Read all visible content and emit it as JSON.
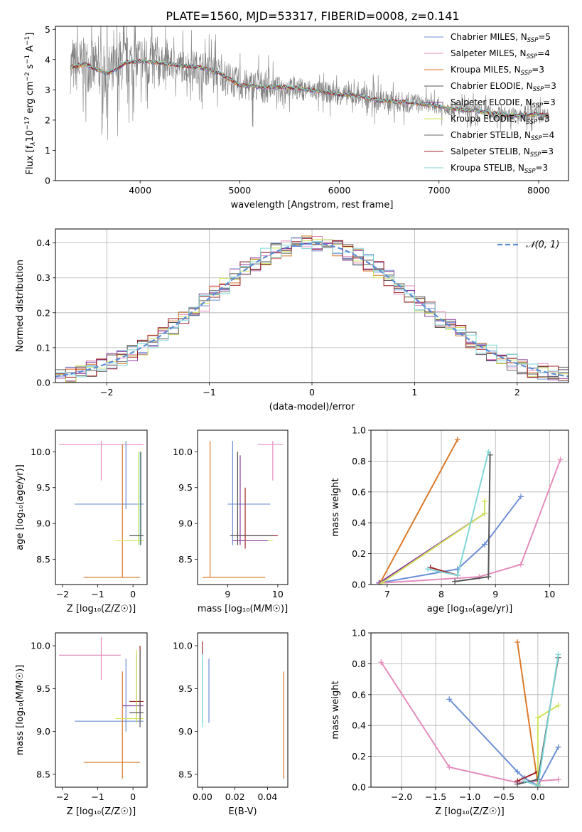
{
  "figure_title": "PLATE=1560, MJD=53317, FIBERID=0008, z=0.141",
  "colors": {
    "chab_miles": "#6b8fd6",
    "salp_miles": "#e48cbc",
    "krou_miles": "#d97a2b",
    "chab_elodie": "#555555",
    "salp_elodie": "#8b3a9e",
    "krou_elodie": "#cfe35a",
    "chab_stelib": "#666666",
    "salp_stelib": "#a0242a",
    "krou_stelib": "#7fd6d6",
    "data": "#808080",
    "gauss": "#5b8bd6"
  },
  "legend": [
    {
      "key": "chab_miles",
      "label": "Chabrier MILES, N",
      "sub": "SSP",
      "tail": "=5"
    },
    {
      "key": "salp_miles",
      "label": "Salpeter MILES, N",
      "sub": "SSP",
      "tail": "=4"
    },
    {
      "key": "krou_miles",
      "label": "Kroupa MILES, N",
      "sub": "SSP",
      "tail": "=3"
    },
    {
      "key": "chab_elodie",
      "label": "Chabrier ELODIE, N",
      "sub": "SSP",
      "tail": "=3"
    },
    {
      "key": "salp_elodie",
      "label": "Salpeter ELODIE, N",
      "sub": "SSP",
      "tail": "=3"
    },
    {
      "key": "krou_elodie",
      "label": "Kroupa ELODIE, N",
      "sub": "SSP",
      "tail": "=3"
    },
    {
      "key": "chab_stelib",
      "label": "Chabrier STELIB, N",
      "sub": "SSP",
      "tail": "=4"
    },
    {
      "key": "salp_stelib",
      "label": "Salpeter STELIB, N",
      "sub": "SSP",
      "tail": "=3"
    },
    {
      "key": "krou_stelib",
      "label": "Kroupa STELIB, N",
      "sub": "SSP",
      "tail": "=3"
    }
  ],
  "chart_data": [
    {
      "id": "spectrum",
      "type": "line",
      "xlabel": "wavelength [Angstrom, rest frame]",
      "ylabel_parts": [
        "Flux [f",
        "λ",
        "10",
        "−17",
        " erg cm",
        "−2",
        " s",
        "−1",
        " A",
        "−1",
        "]"
      ],
      "xlim": [
        3150,
        8300
      ],
      "ylim": [
        0,
        5.1
      ],
      "xticks": [
        4000,
        5000,
        6000,
        7000,
        8000
      ],
      "yticks": [
        0,
        1,
        2,
        3,
        4,
        5
      ],
      "xrange_data": [
        3300,
        8100
      ],
      "model_points": [
        [
          3300,
          3.75
        ],
        [
          3450,
          3.85
        ],
        [
          3550,
          3.7
        ],
        [
          3650,
          3.55
        ],
        [
          3750,
          3.65
        ],
        [
          3850,
          3.9
        ],
        [
          4000,
          3.95
        ],
        [
          4200,
          3.9
        ],
        [
          4400,
          3.8
        ],
        [
          4600,
          3.75
        ],
        [
          4800,
          3.55
        ],
        [
          5000,
          3.15
        ],
        [
          5200,
          3.1
        ],
        [
          5400,
          3.1
        ],
        [
          5600,
          3.05
        ],
        [
          5800,
          2.95
        ],
        [
          6000,
          2.85
        ],
        [
          6200,
          2.8
        ],
        [
          6400,
          2.65
        ],
        [
          6600,
          2.6
        ],
        [
          6800,
          2.55
        ],
        [
          7000,
          2.45
        ],
        [
          7200,
          2.35
        ],
        [
          7400,
          2.3
        ],
        [
          7600,
          2.2
        ],
        [
          7800,
          2.15
        ],
        [
          8000,
          2.2
        ],
        [
          8100,
          2.15
        ]
      ],
      "grid": false
    },
    {
      "id": "residuals",
      "type": "step",
      "xlabel": "(data-model)/error",
      "ylabel": "Normed distribution",
      "xlim": [
        -2.5,
        2.5
      ],
      "ylim": [
        0,
        0.44
      ],
      "xticks": [
        -2,
        -1,
        0,
        1,
        2
      ],
      "xtick_labels": [
        "−2",
        "−1",
        "0",
        "1",
        "2"
      ],
      "yticks": [
        0,
        0.1,
        0.2,
        0.3,
        0.4
      ],
      "ytick_labels": [
        "0.0",
        "0.1",
        "0.2",
        "0.3",
        "0.4"
      ],
      "bins": [
        -2.5,
        2.5,
        50
      ],
      "gauss_label": "𝒩(0, 1)",
      "grid": true
    },
    {
      "id": "age_vs_z",
      "type": "errorbar",
      "xlabel": "Z [log₁₀(Z/Z☉)]",
      "ylabel": "age  [log₁₀(age/yr)]",
      "xlim": [
        -2.2,
        0.4
      ],
      "ylim": [
        8.15,
        10.3
      ],
      "xticks": [
        -2,
        -1,
        0
      ],
      "xtick_labels": [
        "−2",
        "−1",
        "0"
      ],
      "yticks": [
        8.5,
        9.0,
        9.5,
        10.0
      ],
      "ytick_labels": [
        "8.5",
        "9.0",
        "9.5",
        "10.0"
      ],
      "points": [
        {
          "key": "salp_miles",
          "x": -0.9,
          "xe": [
            -2.1,
            0.3
          ],
          "y": 10.1,
          "ye": [
            9.6,
            10.15
          ]
        },
        {
          "key": "chab_miles",
          "x": -0.2,
          "xe": [
            -1.65,
            0.3
          ],
          "y": 9.27,
          "ye": [
            9.2,
            10.15
          ]
        },
        {
          "key": "krou_miles",
          "x": -0.3,
          "xe": [
            -1.4,
            0.2
          ],
          "y": 8.25,
          "ye": [
            8.25,
            10.1
          ]
        },
        {
          "key": "krou_stelib",
          "x": 0.2,
          "xe": [
            -0.1,
            0.3
          ],
          "y": 8.83,
          "ye": [
            8.7,
            10.0
          ]
        },
        {
          "key": "krou_elodie",
          "x": 0.15,
          "xe": [
            -0.5,
            0.3
          ],
          "y": 8.76,
          "ye": [
            8.7,
            10.0
          ]
        },
        {
          "key": "chab_elodie",
          "x": 0.22,
          "xe": [
            -0.1,
            0.3
          ],
          "y": 8.83,
          "ye": [
            8.7,
            10.0
          ]
        }
      ],
      "grid": false
    },
    {
      "id": "age_vs_mass",
      "type": "errorbar",
      "xlabel": "mass [log₁₀(M/M☉)]",
      "ylabel": "",
      "xlim": [
        8.4,
        10.2
      ],
      "ylim": [
        8.15,
        10.3
      ],
      "xticks": [
        9,
        10
      ],
      "xtick_labels": [
        "9",
        "10"
      ],
      "yticks": [
        8.5,
        9.0,
        9.5,
        10.0
      ],
      "ytick_labels": [
        "8.5",
        "9.0",
        "9.5",
        "10.0"
      ],
      "points": [
        {
          "key": "salp_miles",
          "x": 9.9,
          "xe": [
            9.6,
            10.1
          ],
          "y": 10.1,
          "ye": [
            9.6,
            10.15
          ]
        },
        {
          "key": "chab_miles",
          "x": 9.1,
          "xe": [
            9.0,
            9.85
          ],
          "y": 9.27,
          "ye": [
            8.7,
            10.15
          ]
        },
        {
          "key": "krou_miles",
          "x": 8.65,
          "xe": [
            8.5,
            9.75
          ],
          "y": 8.25,
          "ye": [
            8.25,
            10.15
          ]
        },
        {
          "key": "salp_stelib",
          "x": 9.35,
          "xe": [
            9.15,
            10.0
          ],
          "y": 8.83,
          "ye": [
            8.65,
            9.5
          ]
        },
        {
          "key": "krou_elodie",
          "x": 9.2,
          "xe": [
            9.1,
            9.9
          ],
          "y": 8.76,
          "ye": [
            8.7,
            10.0
          ]
        },
        {
          "key": "chab_elodie",
          "x": 9.2,
          "xe": [
            9.05,
            9.9
          ],
          "y": 8.83,
          "ye": [
            8.7,
            10.0
          ]
        },
        {
          "key": "salp_elodie",
          "x": 9.25,
          "xe": [
            9.1,
            9.8
          ],
          "y": 8.76,
          "ye": [
            8.7,
            9.95
          ]
        }
      ],
      "grid": false
    },
    {
      "id": "weight_vs_age",
      "type": "line",
      "xlabel": "age  [log₁₀(age/yr)]",
      "ylabel": "mass weight",
      "xlim": [
        6.7,
        10.35
      ],
      "ylim": [
        0,
        1.0
      ],
      "xticks": [
        7,
        8,
        9,
        10
      ],
      "xtick_labels": [
        "7",
        "8",
        "9",
        "10"
      ],
      "yticks": [
        0,
        0.2,
        0.4,
        0.6,
        0.8,
        1.0
      ],
      "ytick_labels": [
        "0.0",
        "0.2",
        "0.4",
        "0.6",
        "0.8",
        "1.0"
      ],
      "series": [
        {
          "key": "chab_miles",
          "x": [
            6.85,
            8.3,
            8.8,
            9.47
          ],
          "y": [
            0.01,
            0.1,
            0.26,
            0.57
          ]
        },
        {
          "key": "salp_miles",
          "x": [
            6.9,
            8.7,
            9.47,
            10.2
          ],
          "y": [
            0.01,
            0.05,
            0.13,
            0.81
          ]
        },
        {
          "key": "krou_miles",
          "x": [
            6.87,
            8.3
          ],
          "y": [
            0.01,
            0.94
          ]
        },
        {
          "key": "salp_elodie",
          "x": [
            6.85,
            8.8
          ],
          "y": [
            0.01,
            0.46
          ]
        },
        {
          "key": "krou_elodie",
          "x": [
            6.9,
            8.8,
            8.8
          ],
          "y": [
            0.01,
            0.46,
            0.54
          ]
        },
        {
          "key": "chab_elodie",
          "x": [
            8.25,
            8.87,
            8.9
          ],
          "y": [
            0.02,
            0.05,
            0.84
          ]
        },
        {
          "key": "salp_stelib",
          "x": [
            7.8,
            8.3
          ],
          "y": [
            0.11,
            0.06
          ]
        },
        {
          "key": "krou_stelib",
          "x": [
            7.75,
            8.3,
            8.87
          ],
          "y": [
            0.1,
            0.06,
            0.86
          ]
        }
      ],
      "grid": true
    },
    {
      "id": "mass_vs_z",
      "type": "errorbar",
      "xlabel": "Z [log₁₀(Z/Z☉)]",
      "ylabel": "mass [log₁₀(M/M☉)]",
      "xlim": [
        -2.2,
        0.4
      ],
      "ylim": [
        8.35,
        10.15
      ],
      "xticks": [
        -2,
        -1,
        0
      ],
      "xtick_labels": [
        "−2",
        "−1",
        "0"
      ],
      "yticks": [
        8.5,
        9.0,
        9.5,
        10.0
      ],
      "ytick_labels": [
        "8.5",
        "9.0",
        "9.5",
        "10.0"
      ],
      "points": [
        {
          "key": "salp_miles",
          "x": -0.9,
          "xe": [
            -2.1,
            -0.35
          ],
          "y": 9.89,
          "ye": [
            9.6,
            10.1
          ]
        },
        {
          "key": "chab_miles",
          "x": -0.2,
          "xe": [
            -1.65,
            0.3
          ],
          "y": 9.12,
          "ye": [
            9.0,
            9.85
          ]
        },
        {
          "key": "krou_miles",
          "x": -0.3,
          "xe": [
            -1.4,
            0.2
          ],
          "y": 8.64,
          "ye": [
            8.45,
            9.7
          ]
        },
        {
          "key": "salp_stelib",
          "x": 0.2,
          "xe": [
            -0.1,
            0.3
          ],
          "y": 9.35,
          "ye": [
            9.15,
            10.0
          ]
        },
        {
          "key": "salp_elodie",
          "x": 0.1,
          "xe": [
            -0.3,
            0.3
          ],
          "y": 9.3,
          "ye": [
            9.1,
            9.9
          ]
        },
        {
          "key": "krou_elodie",
          "x": 0.1,
          "xe": [
            -0.5,
            0.3
          ],
          "y": 9.15,
          "ye": [
            9.1,
            9.95
          ]
        },
        {
          "key": "chab_elodie",
          "x": 0.2,
          "xe": [
            -0.1,
            0.3
          ],
          "y": 9.22,
          "ye": [
            9.05,
            9.95
          ]
        }
      ],
      "grid": false
    },
    {
      "id": "mass_vs_ebv",
      "type": "errorbar",
      "xlabel": "E(B-V)",
      "ylabel": "",
      "xlim": [
        -0.003,
        0.0525
      ],
      "ylim": [
        8.35,
        10.15
      ],
      "xticks": [
        0,
        0.02,
        0.04
      ],
      "xtick_labels": [
        "0.00",
        "0.02",
        "0.04"
      ],
      "yticks": [
        8.5,
        9.0,
        9.5,
        10.0
      ],
      "ytick_labels": [
        "8.5",
        "9.0",
        "9.5",
        "10.0"
      ],
      "points": [
        {
          "key": "salp_stelib",
          "x": 0.0,
          "y": 10.0,
          "ye": [
            9.9,
            10.05
          ]
        },
        {
          "key": "chab_miles",
          "x": 0.0,
          "y": 9.5,
          "ye": [
            9.1,
            9.85
          ]
        },
        {
          "key": "krou_stelib",
          "x": 0.0,
          "y": 9.2,
          "ye": [
            9.05,
            9.9
          ]
        },
        {
          "key": "chab_miles",
          "x": 0.004,
          "y": 9.5,
          "ye": [
            9.1,
            9.85
          ]
        },
        {
          "key": "krou_miles",
          "x": 0.05,
          "y": 9.1,
          "ye": [
            8.45,
            9.7
          ]
        }
      ],
      "grid": false
    },
    {
      "id": "weight_vs_z",
      "type": "line",
      "xlabel": "Z [log₁₀(Z/Z☉)]",
      "ylabel": "mass weight",
      "xlim": [
        -2.45,
        0.45
      ],
      "ylim": [
        0,
        1.0
      ],
      "xticks": [
        -2.0,
        -1.5,
        -1.0,
        -0.5,
        0.0
      ],
      "xtick_labels": [
        "−2.0",
        "−1.5",
        "−1.0",
        "−0.5",
        "0.0"
      ],
      "yticks": [
        0,
        0.2,
        0.4,
        0.6,
        0.8,
        1.0
      ],
      "ytick_labels": [
        "0.0",
        "0.2",
        "0.4",
        "0.6",
        "0.8",
        "1.0"
      ],
      "series": [
        {
          "key": "chab_miles",
          "x": [
            -1.3,
            -0.3,
            -0.2,
            0.0,
            0.3
          ],
          "y": [
            0.57,
            0.1,
            0.06,
            0.01,
            0.26
          ]
        },
        {
          "key": "salp_miles",
          "x": [
            -2.3,
            -1.3,
            -0.3,
            0.3
          ],
          "y": [
            0.81,
            0.13,
            0.03,
            0.05
          ]
        },
        {
          "key": "krou_miles",
          "x": [
            -0.3,
            0.0
          ],
          "y": [
            0.94,
            0.02
          ]
        },
        {
          "key": "salp_stelib",
          "x": [
            -0.3,
            0.0
          ],
          "y": [
            0.04,
            0.1
          ]
        },
        {
          "key": "krou_elodie",
          "x": [
            0.0,
            0.0,
            0.3
          ],
          "y": [
            0.01,
            0.45,
            0.53
          ]
        },
        {
          "key": "chab_elodie",
          "x": [
            -0.3,
            0.0,
            0.3
          ],
          "y": [
            0.02,
            0.05,
            0.84
          ]
        },
        {
          "key": "krou_stelib",
          "x": [
            -0.2,
            0.0,
            0.3
          ],
          "y": [
            0.04,
            0.01,
            0.86
          ]
        }
      ],
      "grid": true
    }
  ]
}
